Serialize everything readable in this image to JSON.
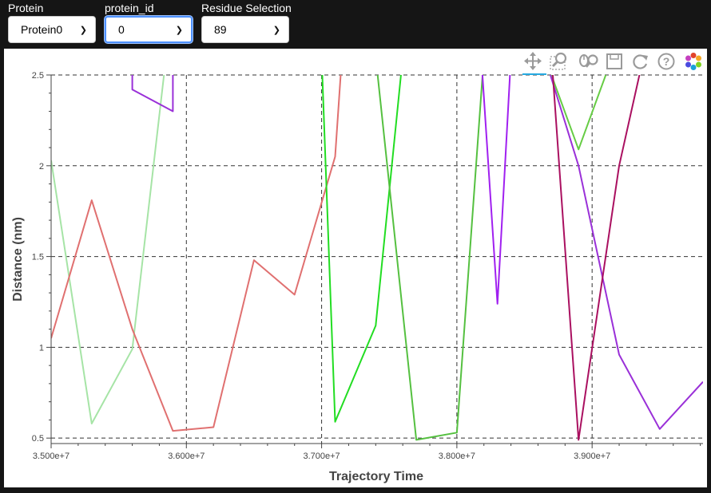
{
  "controls": {
    "protein": {
      "label": "Protein",
      "value": "Protein0"
    },
    "protein_id": {
      "label": "protein_id",
      "value": "0"
    },
    "residue": {
      "label": "Residue Selection",
      "value": "89"
    }
  },
  "toolbar": {
    "icons": [
      "pan-icon",
      "box-zoom-icon",
      "wheel-zoom-icon",
      "save-icon",
      "reset-icon",
      "help-icon",
      "bokeh-logo-icon"
    ]
  },
  "chart_data": {
    "type": "line",
    "xlabel": "Trajectory Time",
    "ylabel": "Distance (nm)",
    "xlim": [
      35000000,
      39820000
    ],
    "ylim": [
      0.47,
      2.5
    ],
    "x_ticks": [
      35000000,
      36000000,
      37000000,
      38000000,
      39000000
    ],
    "x_tick_labels": [
      "3.500e+7",
      "3.600e+7",
      "3.700e+7",
      "3.800e+7",
      "3.900e+7"
    ],
    "y_ticks": [
      0.5,
      1,
      1.5,
      2,
      2.5
    ],
    "y_tick_labels": [
      "0.5",
      "1",
      "1.5",
      "2",
      "2.5"
    ],
    "grid": true,
    "series": [
      {
        "color": "#a6e4a6",
        "x": [
          35000000,
          35300000,
          35600000,
          35850000
        ],
        "y": [
          2.03,
          0.58,
          0.99,
          2.6
        ]
      },
      {
        "color": "#e07070",
        "x": [
          35000000,
          35300000,
          35600000,
          35900000,
          36200000,
          36500000,
          36800000,
          37100000,
          37150000
        ],
        "y": [
          1.05,
          1.81,
          1.1,
          0.54,
          0.56,
          1.48,
          1.29,
          2.05,
          2.6
        ]
      },
      {
        "color": "#9a30d8",
        "x": [
          35600000,
          35600000,
          35900000,
          35900000
        ],
        "y": [
          2.6,
          2.42,
          2.3,
          2.6
        ]
      },
      {
        "color": "#22dd22",
        "x": [
          37000000,
          37100000,
          37400000,
          37600000
        ],
        "y": [
          2.6,
          0.59,
          1.12,
          2.6
        ]
      },
      {
        "color": "#55c040",
        "x": [
          37400000,
          37700000,
          38000000,
          38200000
        ],
        "y": [
          2.6,
          0.49,
          0.53,
          2.6
        ]
      },
      {
        "color": "#a020f0",
        "x": [
          38180000,
          38300000,
          38400000
        ],
        "y": [
          2.6,
          1.24,
          2.6
        ]
      },
      {
        "color": "#66cc44",
        "x": [
          38650000,
          38900000,
          39150000
        ],
        "y": [
          2.6,
          2.09,
          2.6
        ]
      },
      {
        "color": "#9a30d8",
        "x": [
          38650000,
          38900000,
          39200000,
          39500000,
          39820000
        ],
        "y": [
          2.6,
          2.0,
          0.96,
          0.55,
          0.81
        ]
      },
      {
        "color": "#aa1060",
        "x": [
          38700000,
          38900000,
          39200000,
          39380000
        ],
        "y": [
          2.6,
          0.49,
          2.0,
          2.6
        ]
      }
    ]
  }
}
